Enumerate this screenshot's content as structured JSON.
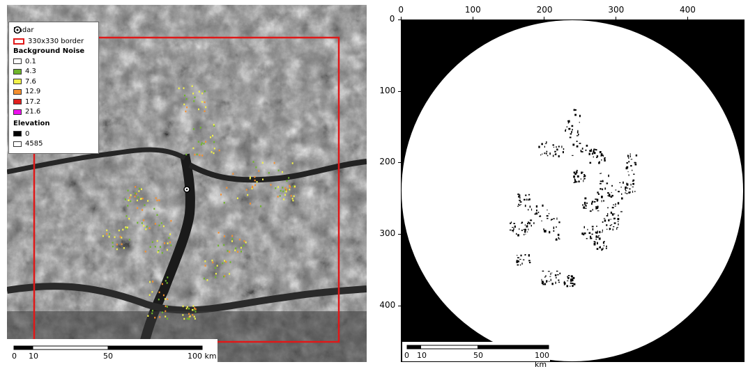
{
  "legend": {
    "radar_label": "Radar",
    "border_label": "330x330  border",
    "noise_heading": "Background  Noise",
    "noise_classes": [
      {
        "label": "0.1",
        "color": "#ffffff"
      },
      {
        "label": "4.3",
        "color": "#6fb52b"
      },
      {
        "label": "7.6",
        "color": "#f2f24a"
      },
      {
        "label": "12.9",
        "color": "#f59030"
      },
      {
        "label": "17.2",
        "color": "#e0201e"
      },
      {
        "label": "21.6",
        "color": "#ee10ee"
      }
    ],
    "elevation_heading": "Elevation",
    "elevation_classes": [
      {
        "label": "0",
        "color": "#000000"
      },
      {
        "label": "4585",
        "color": "#ffffff"
      }
    ]
  },
  "left_scalebar": {
    "labels": [
      "0",
      "10",
      "50",
      "100 km"
    ]
  },
  "right_scalebar": {
    "labels": [
      "0",
      "10",
      "50",
      "100 km"
    ]
  },
  "right_axes": {
    "x_ticks": [
      "0",
      "100",
      "200",
      "300",
      "400"
    ],
    "y_ticks": [
      "0",
      "100",
      "200",
      "300",
      "400"
    ]
  },
  "colors": {
    "border": "#e01818",
    "mask_fill": "#000000",
    "disk_fill": "#ffffff"
  }
}
